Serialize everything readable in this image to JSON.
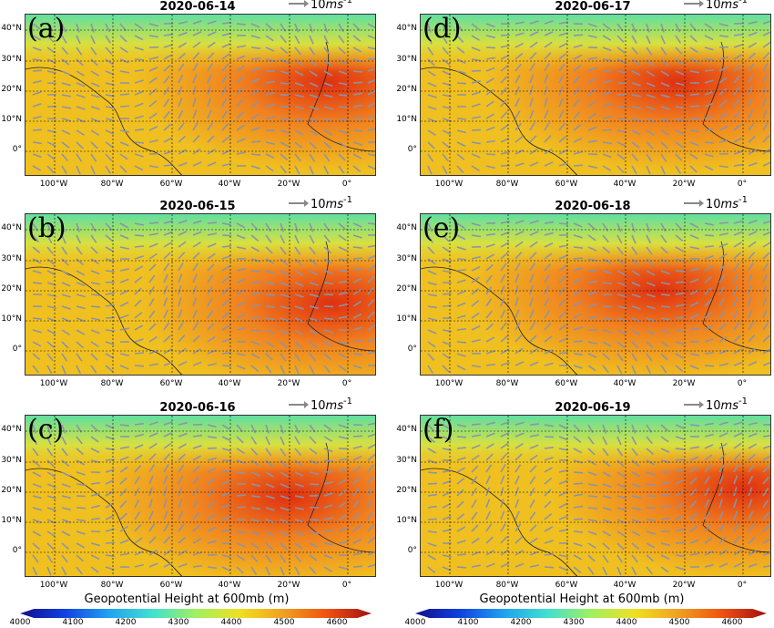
{
  "colors": {
    "low": "#2040c0",
    "mid": "#f0c020",
    "high": "#e03010",
    "arrow": "#8a94a8",
    "grid": "#000000"
  },
  "ref_vector": {
    "value": "10",
    "unit_base": "ms",
    "unit_exp": "-1"
  },
  "y_ticks": [
    "40°N",
    "30°N",
    "20°N",
    "10°N",
    "0°"
  ],
  "x_ticks": [
    "100°W",
    "80°W",
    "60°W",
    "40°W",
    "20°W",
    "0°"
  ],
  "panels": [
    {
      "label": "(a)",
      "date": "2020-06-14"
    },
    {
      "label": "(b)",
      "date": "2020-06-15"
    },
    {
      "label": "(c)",
      "date": "2020-06-16"
    },
    {
      "label": "(d)",
      "date": "2020-06-17"
    },
    {
      "label": "(e)",
      "date": "2020-06-18"
    },
    {
      "label": "(f)",
      "date": "2020-06-19"
    }
  ],
  "colorbar": {
    "title": "Geopotential Height at 600mb (m)",
    "ticks": [
      "4000",
      "4100",
      "4200",
      "4300",
      "4400",
      "4500",
      "4600"
    ]
  }
}
